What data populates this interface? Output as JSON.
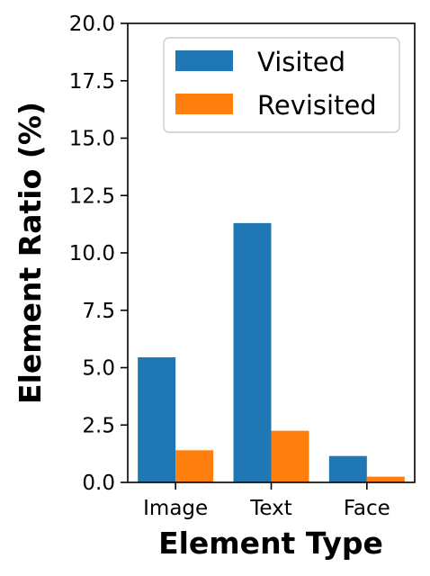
{
  "chart_data": {
    "type": "bar",
    "categories": [
      "Image",
      "Text",
      "Face"
    ],
    "series": [
      {
        "name": "Visited",
        "values": [
          5.45,
          11.3,
          1.15
        ]
      },
      {
        "name": "Revisited",
        "values": [
          1.4,
          2.25,
          0.25
        ]
      }
    ],
    "xlabel": "Element Type",
    "ylabel": "Element Ratio (%)",
    "ylim": [
      0,
      20
    ],
    "yticks": [
      "0.0",
      "2.5",
      "5.0",
      "7.5",
      "10.0",
      "12.5",
      "15.0",
      "17.5",
      "20.0"
    ],
    "grid": false,
    "legend_position": "top-right",
    "colors": {
      "Visited": "#1f77b4",
      "Revisited": "#ff7f0e"
    }
  }
}
